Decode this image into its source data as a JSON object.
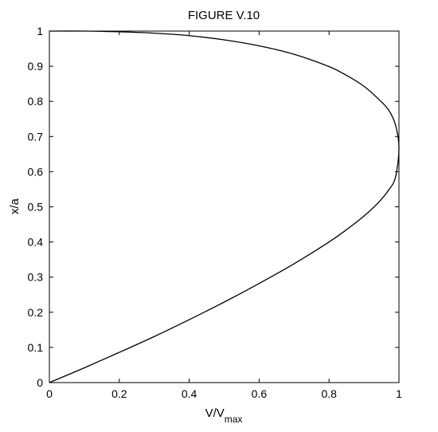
{
  "chart_data": {
    "type": "line",
    "title": "FIGURE V.10",
    "xlabel": "V/V",
    "xlabel_sub": "max",
    "ylabel": "x/a",
    "xlim": [
      0,
      1
    ],
    "ylim": [
      0,
      1
    ],
    "xticks": [
      "0",
      "0.2",
      "0.4",
      "0.6",
      "0.8",
      "1"
    ],
    "yticks": [
      "0",
      "0.1",
      "0.2",
      "0.3",
      "0.4",
      "0.5",
      "0.6",
      "0.7",
      "0.8",
      "0.9",
      "1"
    ],
    "grid": false,
    "series": [
      {
        "color": "#000000",
        "x": [
          0,
          0.1,
          0.2,
          0.3,
          0.4,
          0.5,
          0.6,
          0.7,
          0.8,
          0.85,
          0.9,
          0.94,
          0.97,
          0.99,
          1.0,
          0.99,
          0.97,
          0.94,
          0.9,
          0.85,
          0.8,
          0.7,
          0.6,
          0.5,
          0.4,
          0.3,
          0.2,
          0.1,
          0
        ],
        "y": [
          0,
          0.042,
          0.086,
          0.131,
          0.179,
          0.229,
          0.282,
          0.338,
          0.4,
          0.435,
          0.474,
          0.511,
          0.547,
          0.584,
          0.667,
          0.733,
          0.776,
          0.808,
          0.843,
          0.874,
          0.899,
          0.934,
          0.958,
          0.975,
          0.987,
          0.994,
          0.998,
          1.0,
          1.0
        ]
      }
    ]
  }
}
